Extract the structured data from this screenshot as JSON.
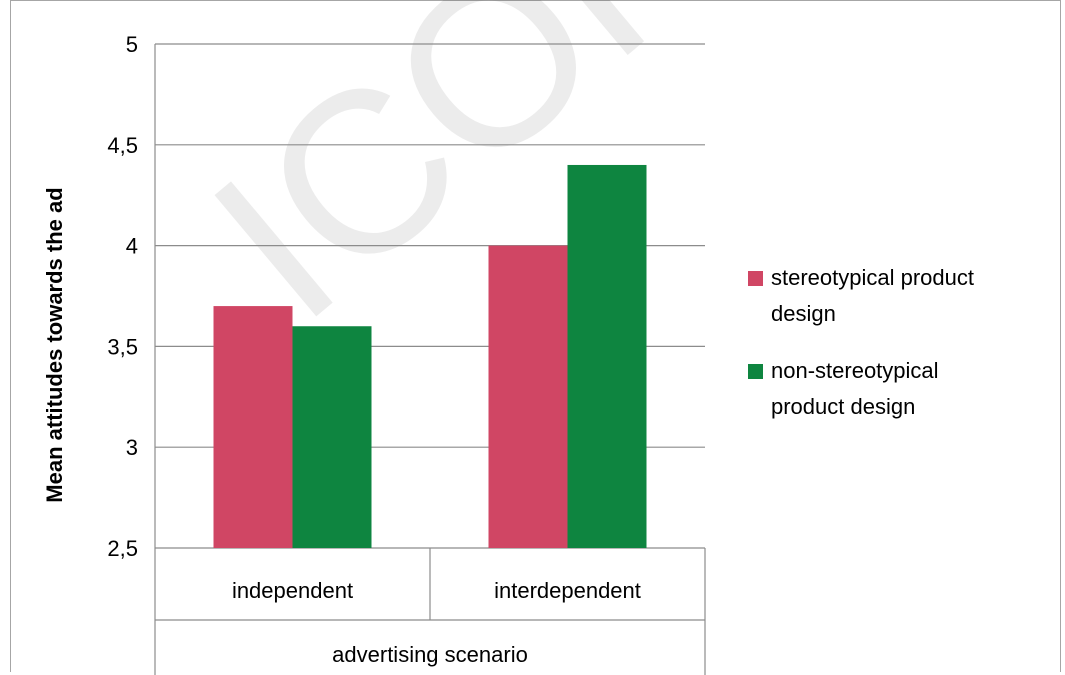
{
  "chart_data": {
    "type": "bar",
    "categories": [
      "independent",
      "interdependent"
    ],
    "series": [
      {
        "name": "stereotypical product design",
        "color": "#d04664",
        "values": [
          3.7,
          4.0
        ]
      },
      {
        "name": "non-stereotypical product design",
        "color": "#0e8540",
        "values": [
          3.6,
          4.4
        ]
      }
    ],
    "ylabel": "Mean attitudes towards the ad",
    "xlabel": "advertising scenario",
    "ylim": [
      2.5,
      5
    ],
    "yticks": [
      "2,5",
      "3",
      "3,5",
      "4",
      "4,5",
      "5"
    ],
    "ytick_values": [
      2.5,
      3,
      3.5,
      4,
      4.5,
      5
    ],
    "grid": true,
    "legend_position": "right",
    "legend_lines": [
      [
        "stereotypical product",
        "design"
      ],
      [
        "non-stereotypical",
        "product design"
      ]
    ],
    "watermark": "ICOR"
  }
}
